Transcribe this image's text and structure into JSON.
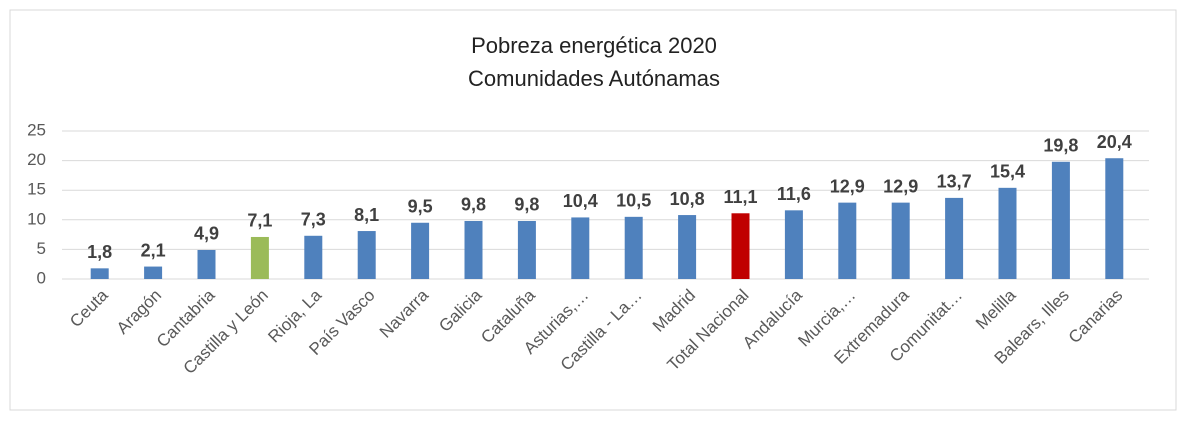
{
  "chart_data": {
    "type": "bar",
    "title": "Pobreza energética 2020",
    "subtitle": "Comunidades Autónamas",
    "categories": [
      "Ceuta",
      "Aragón",
      "Cantabria",
      "Castilla y León",
      "Rioja, La",
      "País Vasco",
      "Navarra",
      "Galicia",
      "Cataluña",
      "Asturias,…",
      "Castilla - La…",
      "Madrid",
      "Total Nacional",
      "Andalucía",
      "Murcia,…",
      "Extremadura",
      "Comunitat…",
      "Melilla",
      "Balears, Illes",
      "Canarias"
    ],
    "values": [
      1.8,
      2.1,
      4.9,
      7.1,
      7.3,
      8.1,
      9.5,
      9.8,
      9.8,
      10.4,
      10.5,
      10.8,
      11.1,
      11.6,
      12.9,
      12.9,
      13.7,
      15.4,
      19.8,
      20.4
    ],
    "value_labels": [
      "1,8",
      "2,1",
      "4,9",
      "7,1",
      "7,3",
      "8,1",
      "9,5",
      "9,8",
      "9,8",
      "10,4",
      "10,5",
      "10,8",
      "11,1",
      "11,6",
      "12,9",
      "12,9",
      "13,7",
      "15,4",
      "19,8",
      "20,4"
    ],
    "colors": [
      "#4f81bd",
      "#4f81bd",
      "#4f81bd",
      "#9bbb59",
      "#4f81bd",
      "#4f81bd",
      "#4f81bd",
      "#4f81bd",
      "#4f81bd",
      "#4f81bd",
      "#4f81bd",
      "#4f81bd",
      "#c00000",
      "#4f81bd",
      "#4f81bd",
      "#4f81bd",
      "#4f81bd",
      "#4f81bd",
      "#4f81bd",
      "#4f81bd"
    ],
    "ylim": [
      0,
      25
    ],
    "yticks": [
      0,
      5,
      10,
      15,
      20,
      25
    ],
    "grid": true
  }
}
